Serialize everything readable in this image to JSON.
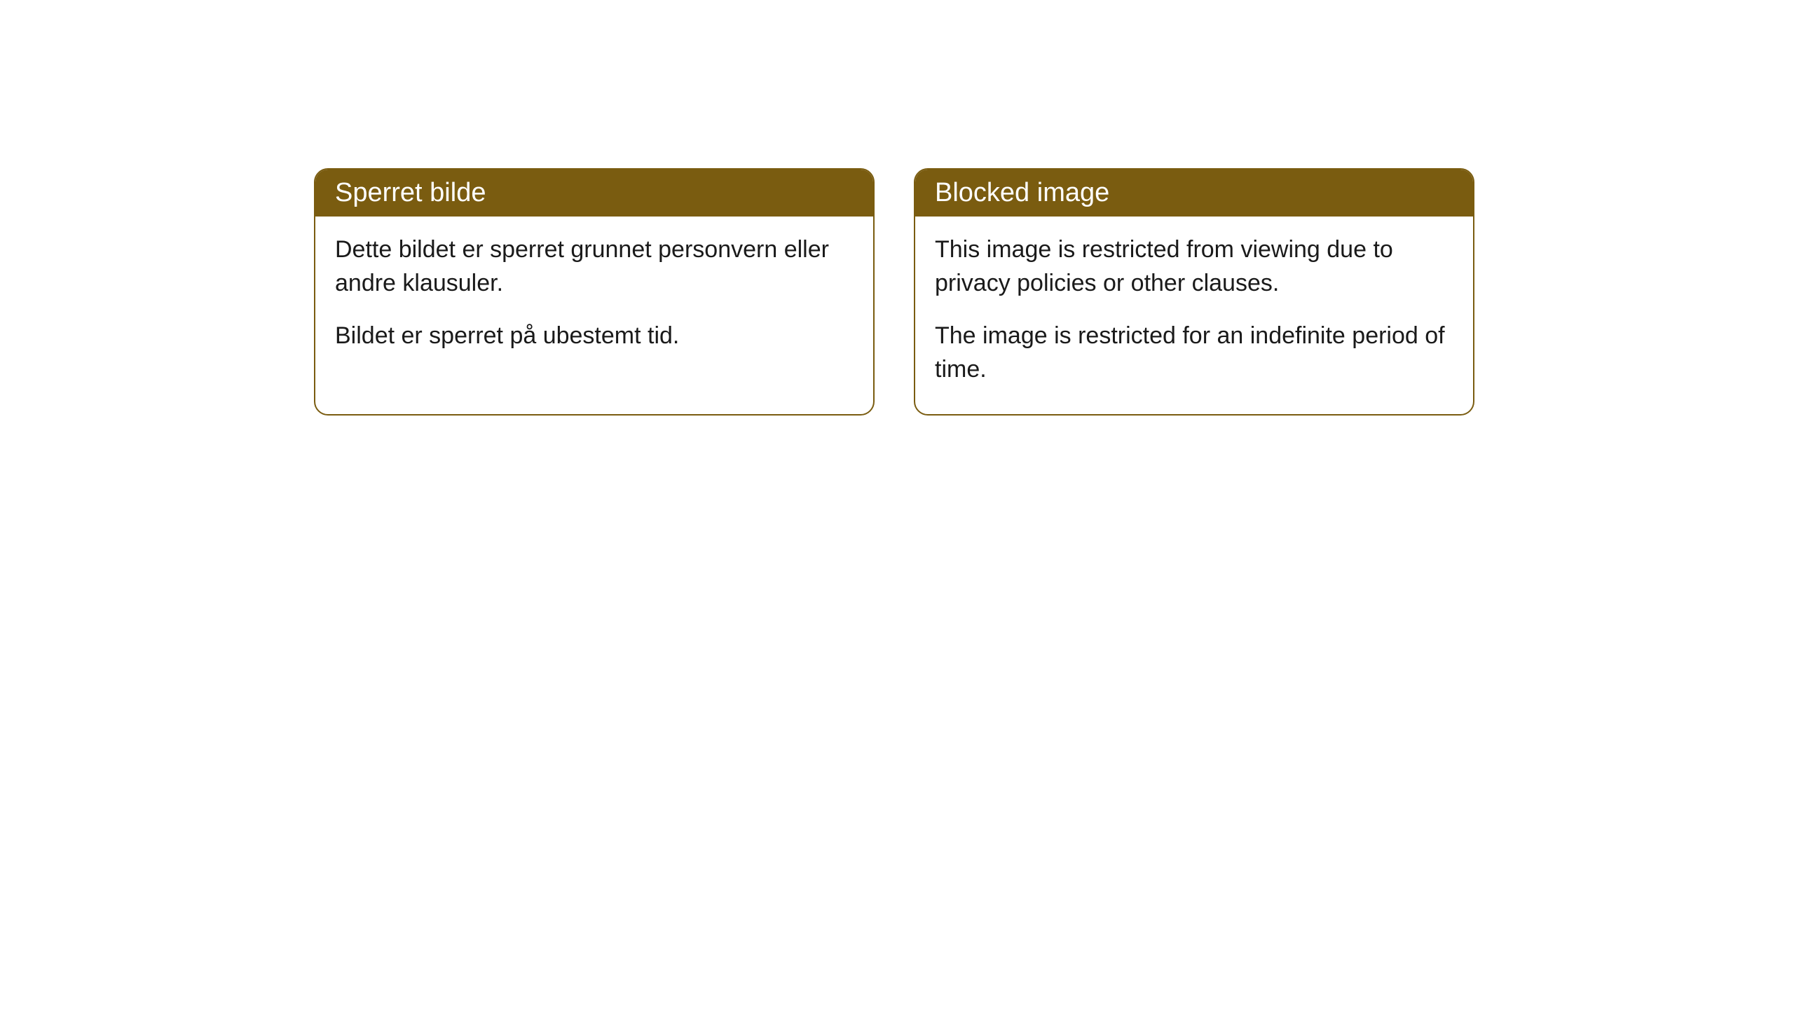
{
  "cards": [
    {
      "title": "Sperret bilde",
      "paragraph1": "Dette bildet er sperret grunnet personvern eller andre klausuler.",
      "paragraph2": "Bildet er sperret på ubestemt tid."
    },
    {
      "title": "Blocked image",
      "paragraph1": "This image is restricted from viewing due to privacy policies or other clauses.",
      "paragraph2": "The image is restricted for an indefinite period of time."
    }
  ],
  "styling": {
    "header_background": "#7a5c10",
    "header_text_color": "#ffffff",
    "card_border_color": "#7a5c10",
    "card_background": "#ffffff",
    "body_text_color": "#1a1a1a",
    "page_background": "#ffffff",
    "border_radius": 20,
    "header_fontsize": 38,
    "body_fontsize": 34
  }
}
